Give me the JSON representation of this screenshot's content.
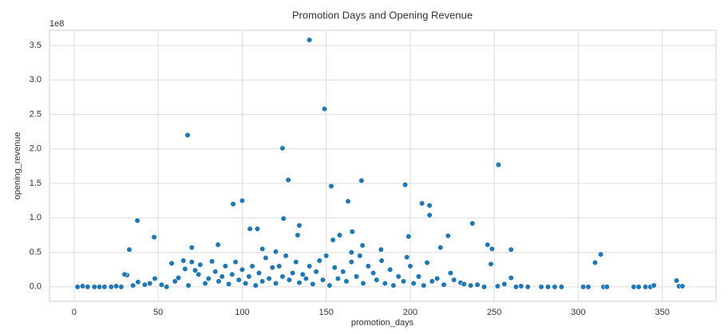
{
  "chart_data": {
    "type": "scatter",
    "title": "Promotion Days and Opening Revenue",
    "x_label": "promotion_days",
    "y_label": "opening_revenue",
    "y_offset_label": "1e8",
    "color": "#1f77b4",
    "grid": true,
    "xlim": [
      -14.7,
      382
    ],
    "ylim": [
      -0.21,
      3.72
    ],
    "xticks": [
      0,
      50,
      100,
      150,
      200,
      250,
      300,
      350
    ],
    "yticks": [
      {
        "value": 0,
        "label": "0.0"
      },
      0.5,
      {
        "value": 1,
        "label": "1.0"
      },
      1.5,
      {
        "value": 2,
        "label": "2.0"
      },
      2.5,
      {
        "value": 3,
        "label": "3.0"
      },
      3.5
    ],
    "x": [
      140,
      149,
      67.5,
      124,
      252.5,
      127.4,
      171,
      153,
      197,
      100,
      94.6,
      207,
      211.5,
      163,
      211.5,
      37.6,
      124.6,
      237,
      134,
      104.6,
      109,
      165.5,
      158,
      133,
      222.5,
      199,
      47.6,
      171.6,
      246,
      70,
      85.6,
      248.7,
      260,
      32.8,
      218,
      182.6,
      154,
      310,
      313.4,
      358.5,
      112,
      120,
      31.4,
      165,
      2,
      5,
      8,
      12,
      15,
      18,
      22,
      25,
      28,
      30,
      35,
      38,
      42,
      45,
      48,
      52,
      55,
      58,
      60,
      62,
      65,
      66,
      68,
      70,
      72,
      74,
      75,
      78,
      80,
      82,
      84,
      86,
      88,
      90,
      92,
      94,
      96,
      98,
      100,
      102,
      104,
      106,
      108,
      110,
      112,
      114,
      116,
      118,
      120,
      122,
      124,
      126,
      128,
      130,
      132,
      134,
      136,
      138,
      140,
      142,
      144,
      146,
      148,
      150,
      152,
      155,
      157,
      160,
      162,
      165,
      168,
      170,
      172,
      175,
      178,
      180,
      183,
      185,
      188,
      190,
      193,
      196,
      198,
      200,
      202,
      205,
      208,
      210,
      213,
      216,
      220,
      224,
      226,
      230,
      232,
      236,
      240,
      244,
      248,
      252,
      256,
      260,
      263,
      266,
      270,
      278,
      282,
      286,
      290,
      303,
      306,
      315,
      317,
      333,
      336,
      340,
      343,
      345,
      360,
      362
    ],
    "values": [
      3.58,
      2.58,
      2.2,
      2.01,
      1.77,
      1.55,
      1.54,
      1.46,
      1.48,
      1.25,
      1.2,
      1.21,
      1.18,
      1.24,
      1.04,
      0.96,
      0.99,
      0.92,
      0.89,
      0.84,
      0.84,
      0.8,
      0.75,
      0.75,
      0.74,
      0.73,
      0.72,
      0.6,
      0.61,
      0.57,
      0.61,
      0.55,
      0.54,
      0.54,
      0.57,
      0.54,
      0.68,
      0.35,
      0.47,
      0.09,
      0.55,
      0.51,
      0.17,
      0.5,
      0,
      0.01,
      0,
      0,
      0,
      0,
      0,
      0.01,
      0,
      0.18,
      0.02,
      0.07,
      0.03,
      0.05,
      0.12,
      0.03,
      0,
      0.34,
      0.08,
      0.13,
      0.38,
      0.26,
      0.02,
      0.36,
      0.24,
      0.18,
      0.32,
      0.05,
      0.12,
      0.37,
      0.22,
      0.08,
      0.15,
      0.3,
      0.04,
      0.18,
      0.36,
      0.1,
      0.25,
      0.05,
      0.15,
      0.3,
      0.02,
      0.2,
      0.08,
      0.42,
      0.12,
      0.28,
      0.05,
      0.3,
      0.15,
      0.45,
      0.1,
      0.2,
      0.36,
      0.06,
      0.18,
      0.12,
      0.3,
      0.04,
      0.22,
      0.38,
      0.1,
      0.45,
      0.02,
      0.28,
      0.12,
      0.22,
      0.08,
      0.36,
      0.15,
      0.45,
      0.05,
      0.3,
      0.2,
      0.1,
      0.38,
      0.05,
      0.25,
      0.02,
      0.15,
      0.08,
      0.43,
      0.3,
      0.05,
      0.15,
      0.02,
      0.35,
      0.08,
      0.12,
      0.03,
      0.2,
      0.1,
      0.06,
      0.04,
      0.02,
      0.03,
      0,
      0.33,
      0.01,
      0.04,
      0.13,
      0,
      0.01,
      0,
      0,
      0,
      0,
      0,
      0,
      0,
      0,
      0,
      0,
      0,
      0,
      0,
      0.02,
      0.01,
      0.01
    ]
  }
}
